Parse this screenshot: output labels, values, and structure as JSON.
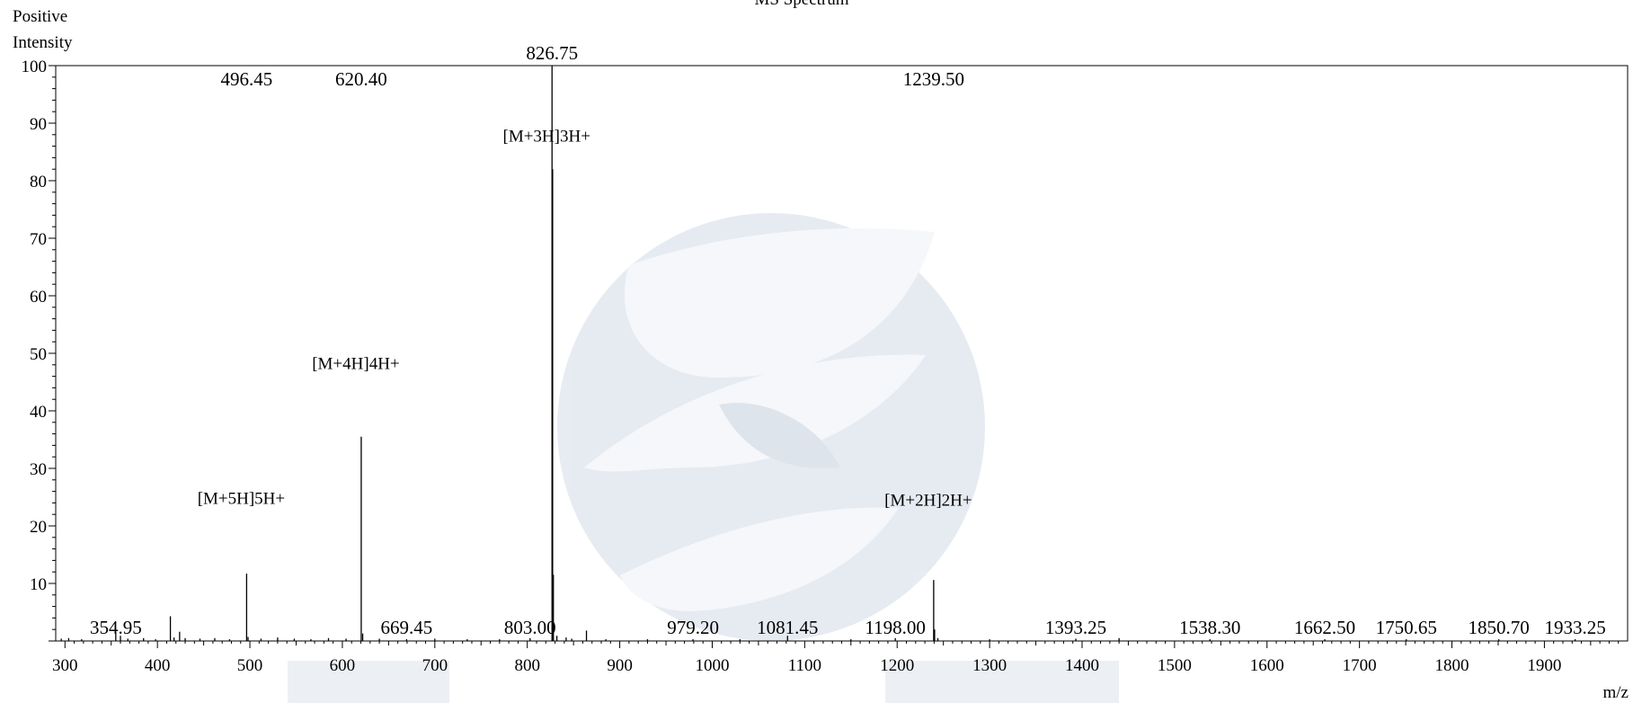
{
  "chart_data": {
    "type": "bar",
    "title": "MS Spectrum",
    "ylabel_lines": [
      "Positive",
      "Intensity"
    ],
    "xlabel": "m/z",
    "xlim": [
      290,
      1990
    ],
    "ylim": [
      0,
      100
    ],
    "x_ticks": [
      "300",
      "400",
      "500",
      "600",
      "700",
      "800",
      "900",
      "1000",
      "1100",
      "1200",
      "1300",
      "1400",
      "1500",
      "1600",
      "1700",
      "1800",
      "1900"
    ],
    "y_ticks": [
      "10",
      "20",
      "30",
      "40",
      "50",
      "60",
      "70",
      "80",
      "90",
      "100"
    ],
    "peaks": [
      {
        "x": 296,
        "y": 0.4
      },
      {
        "x": 304,
        "y": 0.5
      },
      {
        "x": 318,
        "y": 0.3
      },
      {
        "x": 354.95,
        "y": 1.5
      },
      {
        "x": 360,
        "y": 0.9
      },
      {
        "x": 368,
        "y": 0.4
      },
      {
        "x": 385,
        "y": 0.5
      },
      {
        "x": 398,
        "y": 0.3
      },
      {
        "x": 414,
        "y": 4.3
      },
      {
        "x": 418,
        "y": 0.6
      },
      {
        "x": 424,
        "y": 1.6
      },
      {
        "x": 430,
        "y": 0.5
      },
      {
        "x": 446,
        "y": 0.4
      },
      {
        "x": 462,
        "y": 0.5
      },
      {
        "x": 478,
        "y": 0.3
      },
      {
        "x": 496.45,
        "y": 11.7
      },
      {
        "x": 498,
        "y": 0.7
      },
      {
        "x": 512,
        "y": 0.4
      },
      {
        "x": 530,
        "y": 0.6
      },
      {
        "x": 548,
        "y": 0.4
      },
      {
        "x": 566,
        "y": 0.3
      },
      {
        "x": 585,
        "y": 0.5
      },
      {
        "x": 604,
        "y": 0.4
      },
      {
        "x": 620.4,
        "y": 35.5
      },
      {
        "x": 622,
        "y": 1.3
      },
      {
        "x": 640,
        "y": 0.4
      },
      {
        "x": 669.45,
        "y": 0.3
      },
      {
        "x": 700,
        "y": 0.4
      },
      {
        "x": 735,
        "y": 0.3
      },
      {
        "x": 770,
        "y": 0.3
      },
      {
        "x": 803.0,
        "y": 0.5
      },
      {
        "x": 826.75,
        "y": 100
      },
      {
        "x": 827.4,
        "y": 82
      },
      {
        "x": 828.2,
        "y": 11.5
      },
      {
        "x": 832,
        "y": 0.9
      },
      {
        "x": 842,
        "y": 0.6
      },
      {
        "x": 848,
        "y": 0.4
      },
      {
        "x": 864,
        "y": 1.8
      },
      {
        "x": 885,
        "y": 0.3
      },
      {
        "x": 930,
        "y": 0.3
      },
      {
        "x": 979.2,
        "y": 0.3
      },
      {
        "x": 1030,
        "y": 0.3
      },
      {
        "x": 1081.45,
        "y": 0.9
      },
      {
        "x": 1150,
        "y": 0.3
      },
      {
        "x": 1198.0,
        "y": 0.5
      },
      {
        "x": 1239.5,
        "y": 10.6
      },
      {
        "x": 1240.5,
        "y": 2.0
      },
      {
        "x": 1244,
        "y": 0.5
      },
      {
        "x": 1300,
        "y": 0.3
      },
      {
        "x": 1393.25,
        "y": 0.4
      },
      {
        "x": 1440,
        "y": 0.5
      },
      {
        "x": 1538.3,
        "y": 0.3
      },
      {
        "x": 1662.5,
        "y": 0.3
      },
      {
        "x": 1750.65,
        "y": 0.3
      },
      {
        "x": 1850.7,
        "y": 0.3
      },
      {
        "x": 1933.25,
        "y": 0.3
      }
    ],
    "peak_labels": [
      {
        "x": 354.95,
        "text": "354.95",
        "pos": "low"
      },
      {
        "x": 496.45,
        "text": "496.45",
        "pos": "top"
      },
      {
        "x": 620.4,
        "text": "620.40",
        "pos": "top"
      },
      {
        "x": 669.45,
        "text": "669.45",
        "pos": "low"
      },
      {
        "x": 803.0,
        "text": "803.00",
        "pos": "low"
      },
      {
        "x": 826.75,
        "text": "826.75",
        "pos": "top"
      },
      {
        "x": 979.2,
        "text": "979.20",
        "pos": "low"
      },
      {
        "x": 1081.45,
        "text": "1081.45",
        "pos": "low"
      },
      {
        "x": 1198.0,
        "text": "1198.00",
        "pos": "low"
      },
      {
        "x": 1239.5,
        "text": "1239.50",
        "pos": "top"
      },
      {
        "x": 1393.25,
        "text": "1393.25",
        "pos": "low"
      },
      {
        "x": 1538.3,
        "text": "1538.30",
        "pos": "low"
      },
      {
        "x": 1662.5,
        "text": "1662.50",
        "pos": "low"
      },
      {
        "x": 1750.65,
        "text": "1750.65",
        "pos": "low"
      },
      {
        "x": 1850.7,
        "text": "1850.70",
        "pos": "low"
      },
      {
        "x": 1933.25,
        "text": "1933.25",
        "pos": "low"
      }
    ],
    "annotations": [
      {
        "x": 496.45,
        "y": 23.8,
        "text": "[M+5H]5H+"
      },
      {
        "x": 620.4,
        "y": 47.3,
        "text": "[M+4H]4H+"
      },
      {
        "x": 826.75,
        "y": 86.8,
        "text": "[M+3H]3H+"
      },
      {
        "x": 1239.5,
        "y": 23.5,
        "text": "[M+2H]2H+"
      }
    ],
    "colors": {
      "axis": "#000000",
      "peak": "#000000",
      "watermark": "#c9d3e0"
    }
  }
}
